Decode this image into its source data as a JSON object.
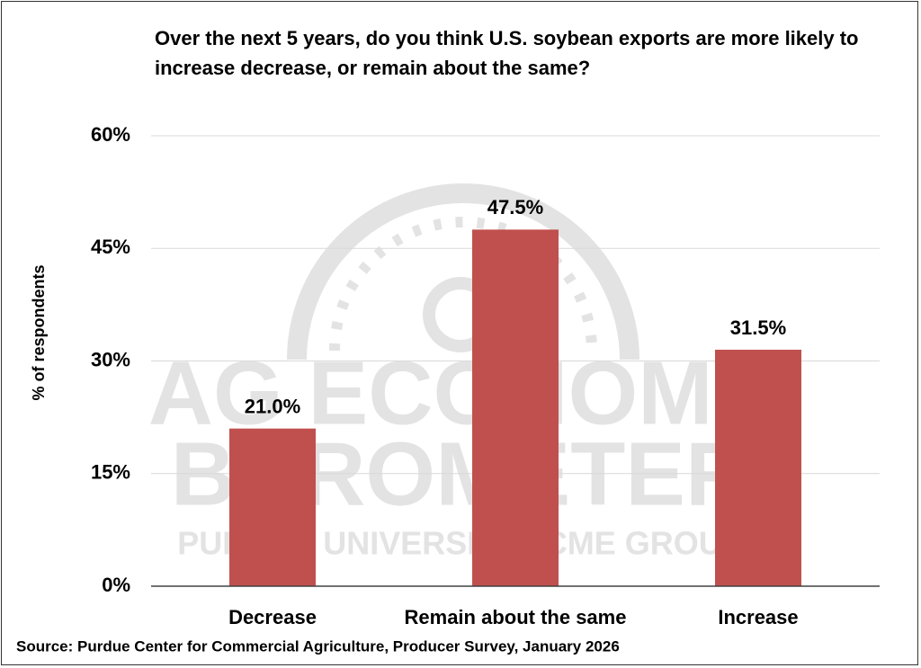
{
  "chart_data": {
    "type": "bar",
    "title": "Over the next 5 years, do you think U.S. soybean exports are more likely to increase decrease, or remain about the same?",
    "y_label": "% of respondents",
    "source": "Source: Purdue Center for Commercial Agriculture, Producer Survey, January 2026",
    "watermark": [
      "AG ECONOMY",
      "BAROMETER",
      "PURDUE UNIVERSITY | CME GROUP"
    ],
    "categories": [
      "Decrease",
      "Remain about the same",
      "Increase"
    ],
    "values": [
      21.0,
      47.5,
      31.5
    ],
    "value_labels": [
      "21.0%",
      "47.5%",
      "31.5%"
    ],
    "color": "#c0504d",
    "ylim": [
      0,
      60
    ],
    "yticks": [
      {
        "value": 0,
        "label": "0%"
      },
      {
        "value": 15,
        "label": "15%"
      },
      {
        "value": 30,
        "label": "30%"
      },
      {
        "value": 45,
        "label": "45%"
      },
      {
        "value": 60,
        "label": "60%"
      }
    ],
    "grid": true
  }
}
